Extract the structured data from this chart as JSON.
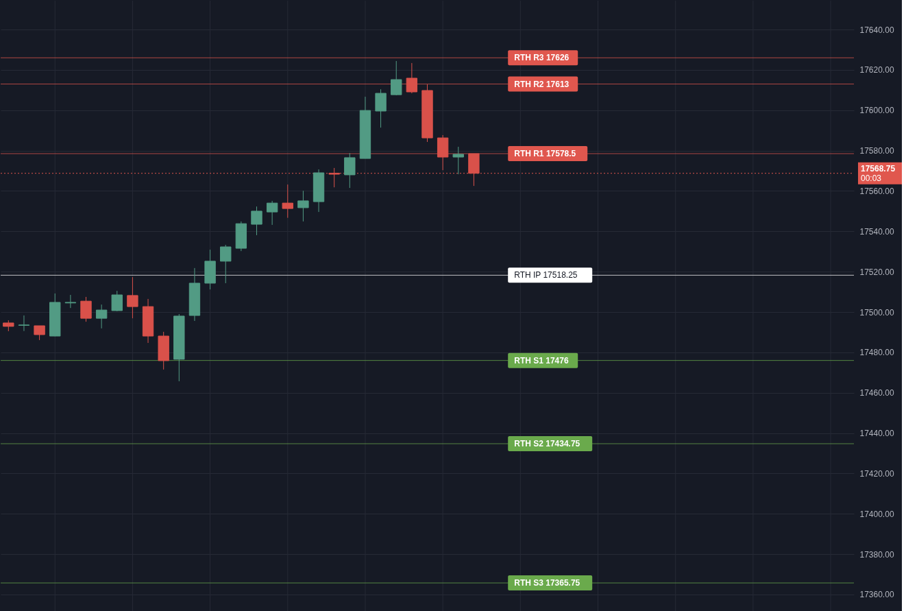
{
  "chart_data": {
    "type": "candlestick",
    "categories": [
      null,
      null,
      null,
      null,
      null,
      null,
      null,
      null,
      null,
      null,
      null,
      null,
      null,
      null,
      null,
      null,
      null,
      null,
      null,
      null,
      null,
      null,
      null,
      null,
      null,
      null,
      null,
      null,
      null,
      null,
      null,
      null,
      null,
      null,
      null,
      null,
      null,
      null,
      null,
      null,
      null,
      null,
      null,
      null,
      null,
      null,
      null,
      null,
      null,
      null,
      null,
      null,
      null,
      null,
      null
    ],
    "ohlc": [
      [
        17494.6,
        17495.9,
        17490.5,
        17492.9
      ],
      [
        17493.4,
        17498.3,
        17490.6,
        17493.6
      ],
      [
        17493.2,
        17493.2,
        17486.1,
        17488.8
      ],
      [
        17488.1,
        17509.2,
        17488.0,
        17504.8
      ],
      [
        17504.5,
        17508.5,
        17502.0,
        17504.8
      ],
      [
        17505.4,
        17507.5,
        17495.2,
        17496.9
      ],
      [
        17496.9,
        17503.7,
        17491.9,
        17501.0
      ],
      [
        17500.7,
        17510.5,
        17500.4,
        17508.5
      ],
      [
        17508.2,
        17517.3,
        17496.9,
        17502.7
      ],
      [
        17502.7,
        17506.5,
        17484.7,
        17488.1
      ],
      [
        17488.1,
        17490.2,
        17471.5,
        17475.9
      ],
      [
        17476.6,
        17499.0,
        17465.7,
        17498.0
      ],
      [
        17498.3,
        17521.8,
        17495.6,
        17514.3
      ],
      [
        17514.3,
        17530.9,
        17511.2,
        17525.2
      ],
      [
        17525.2,
        17533.3,
        17514.3,
        17532.3
      ],
      [
        17531.6,
        17544.9,
        17530.2,
        17543.8
      ],
      [
        17543.5,
        17552.3,
        17538.1,
        17550.0
      ],
      [
        17549.6,
        17555.1,
        17543.2,
        17554.0
      ],
      [
        17554.0,
        17563.2,
        17546.7,
        17551.3
      ],
      [
        17551.7,
        17560.1,
        17544.9,
        17555.1
      ],
      [
        17554.7,
        17570.7,
        17549.6,
        17569.0
      ],
      [
        17568.8,
        17571.4,
        17561.8,
        17568.3
      ],
      [
        17568.0,
        17578.8,
        17561.5,
        17576.5
      ],
      [
        17576.1,
        17606.7,
        17576.1,
        17599.9
      ],
      [
        17599.6,
        17610.4,
        17591.4,
        17608.4
      ],
      [
        17607.7,
        17624.4,
        17607.4,
        17615.2
      ],
      [
        17615.9,
        17623.4,
        17608.4,
        17609.1
      ],
      [
        17609.8,
        17612.8,
        17584.3,
        17586.3
      ],
      [
        17586.3,
        17587.7,
        17570.3,
        17576.8
      ],
      [
        17576.8,
        17581.9,
        17568.3,
        17578.2
      ],
      [
        17578.5,
        17578.5,
        17562.5,
        17568.75
      ],
      null,
      null,
      null,
      null,
      null,
      null,
      null,
      null,
      null,
      null,
      null,
      null,
      null,
      null,
      null,
      null,
      null,
      null,
      null,
      null,
      null,
      null,
      null,
      null
    ],
    "ylim": [
      17351.5,
      17654.3
    ],
    "yticks": [
      {
        "value": 17360,
        "label": "17360.00"
      },
      {
        "value": 17380,
        "label": "17380.00"
      },
      {
        "value": 17400,
        "label": "17400.00"
      },
      {
        "value": 17420,
        "label": "17420.00"
      },
      {
        "value": 17440,
        "label": "17440.00"
      },
      {
        "value": 17460,
        "label": "17460.00"
      },
      {
        "value": 17480,
        "label": "17480.00"
      },
      {
        "value": 17500,
        "label": "17500.00"
      },
      {
        "value": 17520,
        "label": "17520.00"
      },
      {
        "value": 17540,
        "label": "17540.00"
      },
      {
        "value": 17560,
        "label": "17560.00"
      },
      {
        "value": 17580,
        "label": "17580.00"
      },
      {
        "value": 17600,
        "label": "17600.00"
      },
      {
        "value": 17620,
        "label": "17620.00"
      },
      {
        "value": 17640,
        "label": "17640.00"
      }
    ],
    "tick_labels": "y",
    "grid": true,
    "ref_lines": [
      {
        "axis": "y",
        "value": 17626,
        "label": "RTH R3 17626",
        "color": "#e0574e"
      },
      {
        "axis": "y",
        "value": 17613,
        "label": "RTH R2 17613",
        "color": "#e0574e"
      },
      {
        "axis": "y",
        "value": 17578.5,
        "label": "RTH R1 17578.5",
        "color": "#e0574e"
      },
      {
        "axis": "y",
        "value": 17518.25,
        "label": "RTH IP 17518.25",
        "color": "#ffffff"
      },
      {
        "axis": "y",
        "value": 17476,
        "label": "RTH S1 17476",
        "color": "#6aaa4c"
      },
      {
        "axis": "y",
        "value": 17434.75,
        "label": "RTH S2 17434.75",
        "color": "#6aaa4c"
      },
      {
        "axis": "y",
        "value": 17365.75,
        "label": "RTH S3 17365.75",
        "color": "#6aaa4c"
      },
      {
        "axis": "y",
        "value": 17568.75,
        "label": "17568.75\n00:03",
        "color": "#e0574e",
        "line_style": "dotted"
      }
    ]
  }
}
